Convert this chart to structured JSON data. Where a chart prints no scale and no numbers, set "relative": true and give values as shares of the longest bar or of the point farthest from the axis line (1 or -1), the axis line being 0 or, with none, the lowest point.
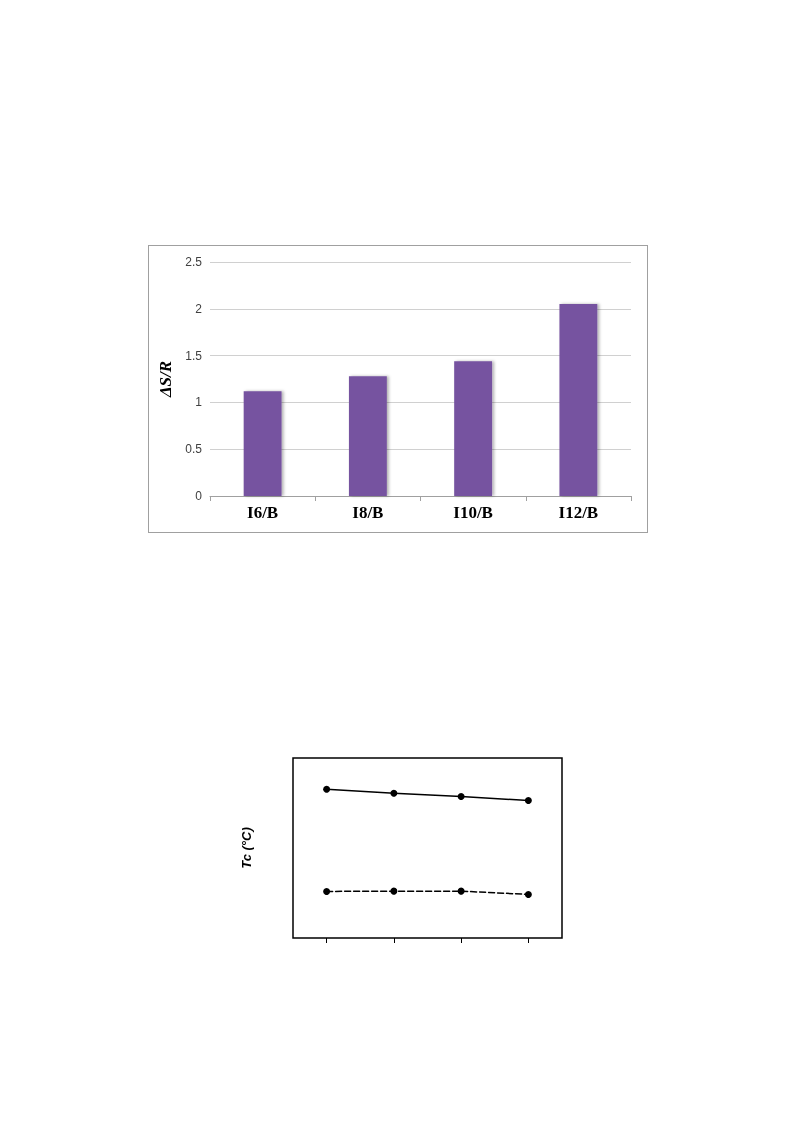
{
  "chart_data": [
    {
      "type": "bar",
      "ylabel": "ΔS/R",
      "categories": [
        "I6/B",
        "I8/B",
        "I10/B",
        "I12/B"
      ],
      "values": [
        1.12,
        1.28,
        1.44,
        2.05
      ],
      "color": "#7652a0",
      "ylim": [
        0,
        2.5
      ],
      "yticks": [
        0,
        0.5,
        1,
        1.5,
        2,
        2.5
      ],
      "grid": "y"
    },
    {
      "type": "line",
      "ylabel": "Tc (°C)",
      "relative": true,
      "categories": [
        null,
        null,
        null,
        null
      ],
      "marker": "circle",
      "series": [
        {
          "color": "#000000",
          "line_style": "solid",
          "values": [
            1,
            0.973,
            0.951,
            0.924
          ]
        },
        {
          "color": "#000000",
          "line_style": "dashed",
          "values": [
            0.313,
            0.315,
            0.315,
            0.293
          ]
        }
      ]
    }
  ]
}
